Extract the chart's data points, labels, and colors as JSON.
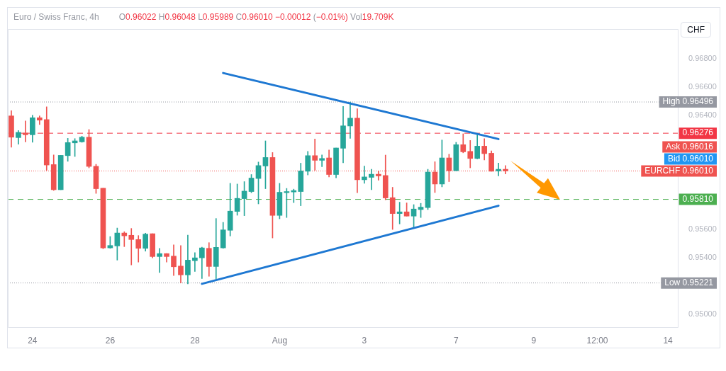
{
  "chart_data": {
    "type": "candlestick",
    "title": "Euro / Swiss Franc, 4h",
    "subtitle": "O0.96022 H0.96048 L0.95989 C0.96010 −0.00012 (−0.01%) Vol19.709K",
    "ylabel": "CHF",
    "categories": [
      null,
      null,
      null,
      "24",
      null,
      null,
      null,
      null,
      null,
      null,
      null,
      null,
      null,
      null,
      "26",
      null,
      null,
      null,
      null,
      null,
      null,
      null,
      null,
      null,
      null,
      null,
      "28",
      null,
      null,
      null,
      null,
      null,
      null,
      null,
      null,
      null,
      null,
      null,
      "Aug",
      null,
      null,
      null,
      null,
      null,
      null,
      null,
      null,
      null,
      null,
      null,
      "3",
      null,
      null,
      null,
      null,
      null,
      null,
      null,
      null,
      null,
      null,
      null,
      null,
      "7",
      null,
      null,
      null,
      null,
      null,
      null,
      null,
      null,
      null,
      null,
      "9",
      null,
      null,
      null,
      null,
      null,
      null,
      null,
      null,
      "12:00",
      null,
      null,
      null,
      null,
      null,
      null,
      null,
      null,
      null,
      "14",
      null
    ],
    "ohlc": [
      [
        0.96398,
        0.96435,
        0.96178,
        0.96248
      ],
      [
        0.96245,
        0.96295,
        0.96198,
        0.96282
      ],
      [
        0.96278,
        0.96362,
        0.96215,
        0.96265
      ],
      [
        0.96265,
        0.96402,
        0.96212,
        0.96385
      ],
      [
        0.96385,
        0.96398,
        0.96337,
        0.96368
      ],
      [
        0.96372,
        0.96462,
        0.96015,
        0.96052
      ],
      [
        0.96055,
        0.96123,
        0.95873,
        0.95878
      ],
      [
        0.95878,
        0.9612,
        0.95878,
        0.9612
      ],
      [
        0.96118,
        0.9624,
        0.96078,
        0.9621
      ],
      [
        0.96208,
        0.96238,
        0.96112,
        0.96222
      ],
      [
        0.96215,
        0.96255,
        0.96212,
        0.96248
      ],
      [
        0.96248,
        0.96302,
        0.96032,
        0.96042
      ],
      [
        0.96043,
        0.96057,
        0.95852,
        0.95885
      ],
      [
        0.95888,
        0.95888,
        0.95462,
        0.95468
      ],
      [
        0.95468,
        0.95548,
        0.95465,
        0.95485
      ],
      [
        0.95482,
        0.95608,
        0.95382,
        0.95573
      ],
      [
        0.95573,
        0.95582,
        0.95477,
        0.95553
      ],
      [
        0.95557,
        0.95605,
        0.95348,
        0.95527
      ],
      [
        0.95527,
        0.95555,
        0.95368,
        0.95465
      ],
      [
        0.95465,
        0.95572,
        0.95445,
        0.95565
      ],
      [
        0.95568,
        0.95568,
        0.95398,
        0.95407
      ],
      [
        0.95407,
        0.95465,
        0.95295,
        0.95428
      ],
      [
        0.95428,
        0.95428,
        0.95368,
        0.95407
      ],
      [
        0.9541,
        0.9549,
        0.95273,
        0.95335
      ],
      [
        0.9534,
        0.95485,
        0.95221,
        0.95278
      ],
      [
        0.95278,
        0.95558,
        0.95215,
        0.95382
      ],
      [
        0.95378,
        0.95435,
        0.95302,
        0.95398
      ],
      [
        0.95398,
        0.95473,
        0.95252,
        0.95468
      ],
      [
        0.95465,
        0.95505,
        0.95268,
        0.95337
      ],
      [
        0.95337,
        0.95675,
        0.95248,
        0.95472
      ],
      [
        0.95468,
        0.95648,
        0.95465,
        0.95595
      ],
      [
        0.95592,
        0.95923,
        0.95552,
        0.95727
      ],
      [
        0.95725,
        0.95918,
        0.95698,
        0.95817
      ],
      [
        0.95815,
        0.95935,
        0.95695,
        0.95868
      ],
      [
        0.95865,
        0.95985,
        0.95857,
        0.9596
      ],
      [
        0.95957,
        0.96073,
        0.95778,
        0.96048
      ],
      [
        0.96045,
        0.96222,
        0.95885,
        0.96105
      ],
      [
        0.96105,
        0.9614,
        0.95538,
        0.95697
      ],
      [
        0.95697,
        0.95923,
        0.95673,
        0.9586
      ],
      [
        0.95857,
        0.95887,
        0.95682,
        0.95865
      ],
      [
        0.95862,
        0.95882,
        0.95787,
        0.95872
      ],
      [
        0.95865,
        0.96065,
        0.95765,
        0.9601
      ],
      [
        0.96008,
        0.96148,
        0.95982,
        0.96118
      ],
      [
        0.96118,
        0.96235,
        0.96015,
        0.96085
      ],
      [
        0.96085,
        0.96123,
        0.9604,
        0.96098
      ],
      [
        0.96102,
        0.96158,
        0.95968,
        0.95985
      ],
      [
        0.95985,
        0.96172,
        0.95962,
        0.96172
      ],
      [
        0.9617,
        0.96465,
        0.96068,
        0.96328
      ],
      [
        0.96327,
        0.96496,
        0.9624,
        0.96382
      ],
      [
        0.96382,
        0.96448,
        0.95857,
        0.95948
      ],
      [
        0.95948,
        0.96045,
        0.95923,
        0.95968
      ],
      [
        0.95965,
        0.96022,
        0.95878,
        0.95987
      ],
      [
        0.95987,
        0.9601,
        0.95945,
        0.95975
      ],
      [
        0.95978,
        0.96122,
        0.95807,
        0.9582
      ],
      [
        0.95822,
        0.95895,
        0.95598,
        0.9571
      ],
      [
        0.9571,
        0.9579,
        0.95637,
        0.95722
      ],
      [
        0.95722,
        0.95785,
        0.95692,
        0.95692
      ],
      [
        0.95692,
        0.95773,
        0.95612,
        0.95742
      ],
      [
        0.95738,
        0.95782,
        0.95682,
        0.95755
      ],
      [
        0.95752,
        0.96022,
        0.95738,
        0.96002
      ],
      [
        0.96002,
        0.96075,
        0.95858,
        0.95918
      ],
      [
        0.95918,
        0.96228,
        0.95898,
        0.96102
      ],
      [
        0.96102,
        0.96128,
        0.95935,
        0.96012
      ],
      [
        0.96012,
        0.96212,
        0.96012,
        0.96195
      ],
      [
        0.96195,
        0.96272,
        0.96138,
        0.96145
      ],
      [
        0.96148,
        0.96225,
        0.96032,
        0.96098
      ],
      [
        0.96098,
        0.96268,
        0.96095,
        0.96185
      ],
      [
        0.96185,
        0.96238,
        0.96088,
        0.96132
      ],
      [
        0.96135,
        0.96152,
        0.96008,
        0.96008
      ],
      [
        0.9601,
        0.96065,
        0.95975,
        0.96022
      ],
      [
        0.96022,
        0.96048,
        0.95989,
        0.9601
      ],
      null,
      null,
      null,
      null,
      null,
      null,
      null,
      null,
      null,
      null,
      null,
      null,
      null,
      null,
      null,
      null,
      null,
      null,
      null,
      null,
      null,
      null,
      null,
      null
    ],
    "colors": [
      "#ef5350",
      "#26a69a",
      "#ef5350",
      "#26a69a",
      "#ef5350",
      "#ef5350",
      "#ef5350",
      "#26a69a",
      "#26a69a",
      "#26a69a",
      "#26a69a",
      "#ef5350",
      "#ef5350",
      "#ef5350",
      "#26a69a",
      "#26a69a",
      "#ef5350",
      "#ef5350",
      "#ef5350",
      "#26a69a",
      "#ef5350",
      "#26a69a",
      "#ef5350",
      "#ef5350",
      "#ef5350",
      "#26a69a",
      "#26a69a",
      "#26a69a",
      "#ef5350",
      "#26a69a",
      "#26a69a",
      "#26a69a",
      "#26a69a",
      "#26a69a",
      "#26a69a",
      "#26a69a",
      "#26a69a",
      "#ef5350",
      "#26a69a",
      "#26a69a",
      "#26a69a",
      "#26a69a",
      "#26a69a",
      "#ef5350",
      "#26a69a",
      "#ef5350",
      "#26a69a",
      "#26a69a",
      "#26a69a",
      "#ef5350",
      "#26a69a",
      "#26a69a",
      "#ef5350",
      "#ef5350",
      "#ef5350",
      "#26a69a",
      "#ef5350",
      "#26a69a",
      "#26a69a",
      "#26a69a",
      "#ef5350",
      "#26a69a",
      "#ef5350",
      "#26a69a",
      "#ef5350",
      "#ef5350",
      "#26a69a",
      "#ef5350",
      "#ef5350",
      "#26a69a",
      "#ef5350",
      null,
      null,
      null,
      null,
      null,
      null,
      null,
      null,
      null,
      null,
      null,
      null,
      null,
      null,
      null,
      null,
      null,
      null,
      null,
      null,
      null,
      null,
      null,
      null
    ],
    "series": [
      {
        "type": "line",
        "color": "#1e78d2",
        "values": [
          null,
          null,
          null,
          null,
          null,
          null,
          null,
          null,
          null,
          null,
          null,
          null,
          null,
          null,
          null,
          null,
          null,
          null,
          null,
          null,
          null,
          null,
          null,
          null,
          null,
          null,
          null,
          null,
          null,
          null,
          0.967,
          null,
          null,
          null,
          null,
          null,
          null,
          null,
          null,
          null,
          null,
          null,
          null,
          null,
          null,
          null,
          null,
          null,
          null,
          null,
          null,
          null,
          null,
          null,
          null,
          null,
          null,
          null,
          null,
          null,
          null,
          null,
          null,
          null,
          null,
          null,
          null,
          null,
          null,
          0.96235,
          null,
          null,
          null,
          null,
          null,
          null,
          null,
          null,
          null,
          null,
          null,
          null,
          null,
          null,
          null,
          null,
          null,
          null,
          null,
          null,
          null,
          null,
          null,
          null,
          null
        ]
      },
      {
        "type": "line",
        "color": "#1e78d2",
        "values": [
          null,
          null,
          null,
          null,
          null,
          null,
          null,
          null,
          null,
          null,
          null,
          null,
          null,
          null,
          null,
          null,
          null,
          null,
          null,
          null,
          null,
          null,
          null,
          null,
          null,
          null,
          null,
          0.95215,
          null,
          null,
          null,
          null,
          null,
          null,
          null,
          null,
          null,
          null,
          null,
          null,
          null,
          null,
          null,
          null,
          null,
          null,
          null,
          null,
          null,
          null,
          null,
          null,
          null,
          null,
          null,
          null,
          null,
          null,
          null,
          null,
          null,
          null,
          null,
          null,
          null,
          null,
          null,
          null,
          null,
          0.95765,
          null,
          null,
          null,
          null,
          null,
          null,
          null,
          null,
          null,
          null,
          null,
          null,
          null,
          null,
          null,
          null,
          null,
          null,
          null,
          null,
          null,
          null,
          null,
          null,
          null
        ]
      }
    ],
    "ref_lines": [
      {
        "axis": "y",
        "value": 0.96496,
        "label": "High 0.96496",
        "color": "#9598a1",
        "line_style": "dotted"
      },
      {
        "axis": "y",
        "value": 0.96276,
        "label": "0.96276",
        "color": "#f23645",
        "line_style": "dashed"
      },
      {
        "axis": "y",
        "value": 0.9601,
        "label": "EURCHF 0.96010",
        "color": "#ef5350",
        "line_style": "dotted"
      },
      {
        "axis": "y",
        "value": 0.9581,
        "label": "0.95810",
        "color": "#4caf50",
        "line_style": "dashed"
      },
      {
        "axis": "y",
        "value": 0.95221,
        "label": "Low 0.95221",
        "color": "#9598a1",
        "line_style": "dotted"
      }
    ],
    "annotations": [
      "Ask 0.96016",
      "Bid 0.96010"
    ],
    "ylim": [
      0.94905,
      0.9701
    ],
    "yticks": [
      {
        "value": 0.95,
        "label": "0.95000"
      },
      {
        "value": 0.954,
        "label": "0.95400"
      },
      {
        "value": 0.956,
        "label": "0.95600"
      },
      {
        "value": 0.964,
        "label": "0.96400"
      },
      {
        "value": 0.966,
        "label": "0.96600"
      },
      {
        "value": 0.968,
        "label": "0.96800"
      }
    ],
    "grid": false,
    "legend": false
  }
}
